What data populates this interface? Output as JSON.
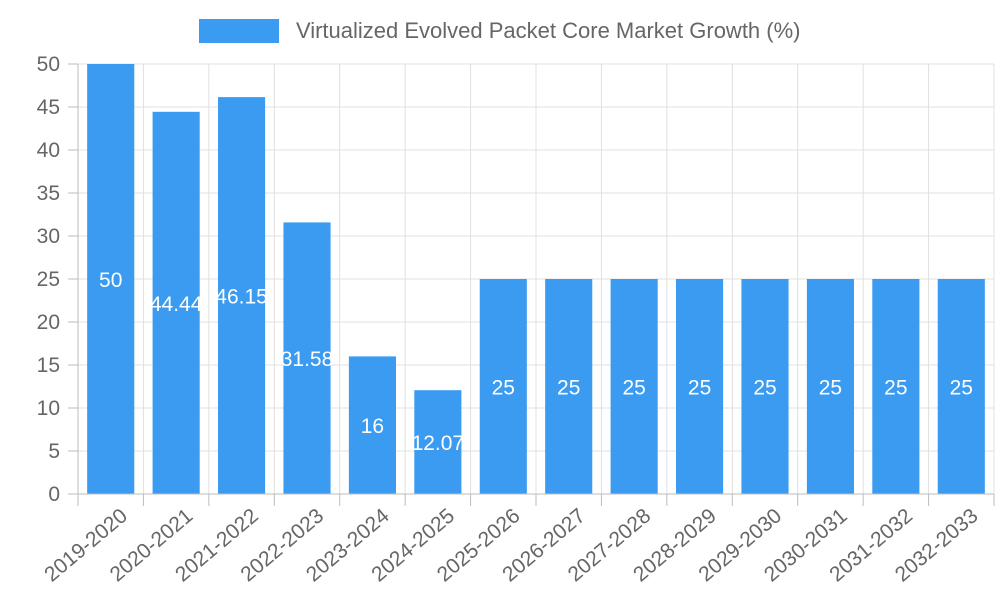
{
  "chart_data": {
    "type": "bar",
    "categories": [
      "2019-2020",
      "2020-2021",
      "2021-2022",
      "2022-2023",
      "2023-2024",
      "2024-2025",
      "2025-2026",
      "2026-2027",
      "2027-2028",
      "2028-2029",
      "2029-2030",
      "2030-2031",
      "2031-2032",
      "2032-2033"
    ],
    "series": [
      {
        "name": "Virtualized Evolved Packet Core Market Growth (%)",
        "values": [
          50,
          44.44,
          46.15,
          31.58,
          16,
          12.07,
          25,
          25,
          25,
          25,
          25,
          25,
          25,
          25
        ],
        "data_labels": [
          "50",
          "44.44",
          "46.15",
          "31.58",
          "16",
          "12.07",
          "25",
          "25",
          "25",
          "25",
          "25",
          "25",
          "25",
          "25"
        ]
      }
    ],
    "ylim": [
      0,
      50
    ],
    "yticks": [
      "0",
      "5",
      "10",
      "15",
      "20",
      "25",
      "30",
      "35",
      "40",
      "45",
      "50"
    ],
    "grid": true,
    "legend_position": "top-center",
    "bar_color": "#3a9bf0",
    "text_color": "#666666",
    "grid_color": "#e0e0e0",
    "axis_color": "#bdbdbd"
  }
}
